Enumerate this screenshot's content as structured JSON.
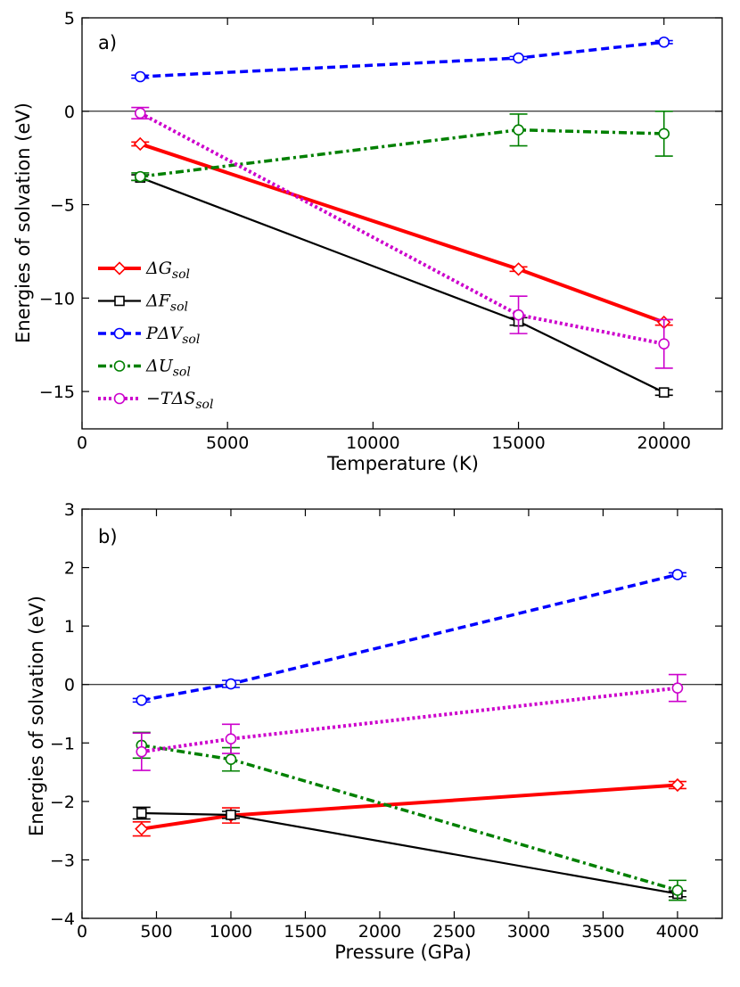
{
  "chart_data": [
    {
      "type": "line",
      "panel_label": "a)",
      "xlabel": "Temperature (K)",
      "ylabel": "Energies of solvation (eV)",
      "xlim": [
        0,
        22000
      ],
      "ylim": [
        -17,
        5
      ],
      "xticks": [
        0,
        5000,
        10000,
        15000,
        20000
      ],
      "xtick_labels": [
        "0",
        "5000",
        "10000",
        "15000",
        "20000"
      ],
      "yticks": [
        5,
        0,
        -5,
        -10,
        -15
      ],
      "ytick_labels": [
        "5",
        "0",
        "−5",
        "−10",
        "−15"
      ],
      "zero_line": true,
      "legend_position": "lower-left",
      "series": [
        {
          "key": "dG",
          "name": "ΔG",
          "sub": "sol",
          "color": "#ff0000",
          "marker": "diamond",
          "style": "solid",
          "width": 4,
          "points": [
            {
              "x": 2000,
              "y": -1.75,
              "err": 0.1
            },
            {
              "x": 15000,
              "y": -8.45,
              "err": 0.12
            },
            {
              "x": 20000,
              "y": -11.3,
              "err": 0.15
            }
          ]
        },
        {
          "key": "dF",
          "name": "ΔF",
          "sub": "sol",
          "color": "#000000",
          "marker": "square",
          "style": "solid",
          "width": 2.2,
          "points": [
            {
              "x": 2000,
              "y": -3.55,
              "err": 0.15
            },
            {
              "x": 15000,
              "y": -11.25,
              "err": 0.2
            },
            {
              "x": 20000,
              "y": -15.05,
              "err": 0.15
            }
          ]
        },
        {
          "key": "PdV",
          "name": "PΔV",
          "sub": "sol",
          "color": "#0000ff",
          "marker": "circle",
          "style": "dashed",
          "width": 3.5,
          "points": [
            {
              "x": 2000,
              "y": 1.85,
              "err": 0.08
            },
            {
              "x": 15000,
              "y": 2.85,
              "err": 0.08
            },
            {
              "x": 20000,
              "y": 3.7,
              "err": 0.08
            }
          ]
        },
        {
          "key": "dU",
          "name": "ΔU",
          "sub": "sol",
          "color": "#008000",
          "marker": "circle",
          "style": "dashdot",
          "width": 3.5,
          "points": [
            {
              "x": 2000,
              "y": -3.5,
              "err": 0.2
            },
            {
              "x": 15000,
              "y": -1.0,
              "err": 0.85
            },
            {
              "x": 20000,
              "y": -1.2,
              "err": 1.2
            }
          ]
        },
        {
          "key": "TdS",
          "name": "−TΔS",
          "sub": "sol",
          "color": "#cc00cc",
          "marker": "circle",
          "style": "dotted",
          "width": 4,
          "points": [
            {
              "x": 2000,
              "y": -0.1,
              "err": 0.3
            },
            {
              "x": 15000,
              "y": -10.9,
              "err": 1.0
            },
            {
              "x": 20000,
              "y": -12.45,
              "err": 1.3
            }
          ]
        }
      ]
    },
    {
      "type": "line",
      "panel_label": "b)",
      "xlabel": "Pressure (GPa)",
      "ylabel": "Energies of solvation (eV)",
      "xlim": [
        0,
        4300
      ],
      "ylim": [
        -4,
        3
      ],
      "xticks": [
        0,
        500,
        1000,
        1500,
        2000,
        2500,
        3000,
        3500,
        4000
      ],
      "xtick_labels": [
        "0",
        "500",
        "1000",
        "1500",
        "2000",
        "2500",
        "3000",
        "3500",
        "4000"
      ],
      "yticks": [
        3,
        2,
        1,
        0,
        -1,
        -2,
        -3,
        -4
      ],
      "ytick_labels": [
        "3",
        "2",
        "1",
        "0",
        "−1",
        "−2",
        "−3",
        "−4"
      ],
      "zero_line": true,
      "series": [
        {
          "key": "dG",
          "name": "ΔG",
          "sub": "sol",
          "color": "#ff0000",
          "marker": "diamond",
          "style": "solid",
          "width": 4,
          "points": [
            {
              "x": 400,
              "y": -2.47,
              "err": 0.12
            },
            {
              "x": 1000,
              "y": -2.24,
              "err": 0.13
            },
            {
              "x": 4000,
              "y": -1.72,
              "err": 0.06
            }
          ]
        },
        {
          "key": "dF",
          "name": "ΔF",
          "sub": "sol",
          "color": "#000000",
          "marker": "square",
          "style": "solid",
          "width": 2.2,
          "points": [
            {
              "x": 400,
              "y": -2.2,
              "err": 0.1
            },
            {
              "x": 1000,
              "y": -2.23,
              "err": 0.06
            },
            {
              "x": 4000,
              "y": -3.58,
              "err": 0.05
            }
          ]
        },
        {
          "key": "PdV",
          "name": "PΔV",
          "sub": "sol",
          "color": "#0000ff",
          "marker": "circle",
          "style": "dashed",
          "width": 3.5,
          "points": [
            {
              "x": 400,
              "y": -0.27,
              "err": 0.03
            },
            {
              "x": 1000,
              "y": 0.01,
              "err": 0.06
            },
            {
              "x": 4000,
              "y": 1.88,
              "err": 0.03
            }
          ]
        },
        {
          "key": "dU",
          "name": "ΔU",
          "sub": "sol",
          "color": "#008000",
          "marker": "circle",
          "style": "dashdot",
          "width": 3.5,
          "points": [
            {
              "x": 400,
              "y": -1.04,
              "err": 0.22
            },
            {
              "x": 1000,
              "y": -1.28,
              "err": 0.2
            },
            {
              "x": 4000,
              "y": -3.52,
              "err": 0.17
            }
          ]
        },
        {
          "key": "TdS",
          "name": "−TΔS",
          "sub": "sol",
          "color": "#cc00cc",
          "marker": "circle",
          "style": "dotted",
          "width": 4,
          "points": [
            {
              "x": 400,
              "y": -1.15,
              "err": 0.32
            },
            {
              "x": 1000,
              "y": -0.93,
              "err": 0.25
            },
            {
              "x": 4000,
              "y": -0.06,
              "err": 0.23
            }
          ]
        }
      ]
    }
  ]
}
